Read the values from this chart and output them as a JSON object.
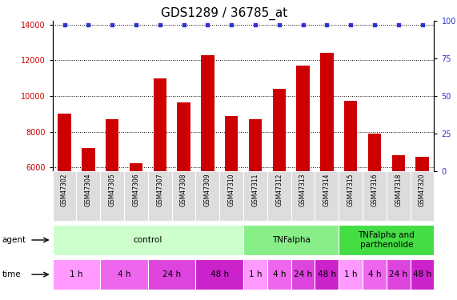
{
  "title": "GDS1289 / 36785_at",
  "samples": [
    "GSM47302",
    "GSM47304",
    "GSM47305",
    "GSM47306",
    "GSM47307",
    "GSM47308",
    "GSM47309",
    "GSM47310",
    "GSM47311",
    "GSM47312",
    "GSM47313",
    "GSM47314",
    "GSM47315",
    "GSM47316",
    "GSM47318",
    "GSM47320"
  ],
  "counts": [
    9000,
    7100,
    8700,
    6250,
    11000,
    9650,
    12300,
    8900,
    8700,
    10400,
    11700,
    12400,
    9750,
    7900,
    6700,
    6600
  ],
  "bar_color": "#cc0000",
  "dot_color": "#3333cc",
  "ylim_left": [
    5800,
    14200
  ],
  "yticks_left": [
    6000,
    8000,
    10000,
    12000,
    14000
  ],
  "yticks_right": [
    0,
    25,
    50,
    75,
    100
  ],
  "right_axis_color": "#3333cc",
  "left_axis_color": "#cc0000",
  "agent_groups": [
    {
      "label": "control",
      "start": 0,
      "end": 8,
      "color": "#ccffcc"
    },
    {
      "label": "TNFalpha",
      "start": 8,
      "end": 12,
      "color": "#88ee88"
    },
    {
      "label": "TNFalpha and\nparthenolide",
      "start": 12,
      "end": 16,
      "color": "#44dd44"
    }
  ],
  "time_group_defs": [
    {
      "label": "1 h",
      "start": 0,
      "end": 2,
      "color": "#ff99ff"
    },
    {
      "label": "4 h",
      "start": 2,
      "end": 4,
      "color": "#ee66ee"
    },
    {
      "label": "24 h",
      "start": 4,
      "end": 6,
      "color": "#dd44dd"
    },
    {
      "label": "48 h",
      "start": 6,
      "end": 8,
      "color": "#cc22cc"
    },
    {
      "label": "1 h",
      "start": 8,
      "end": 9,
      "color": "#ff99ff"
    },
    {
      "label": "4 h",
      "start": 9,
      "end": 10,
      "color": "#ee66ee"
    },
    {
      "label": "24 h",
      "start": 10,
      "end": 11,
      "color": "#dd44dd"
    },
    {
      "label": "48 h",
      "start": 11,
      "end": 12,
      "color": "#cc22cc"
    },
    {
      "label": "1 h",
      "start": 12,
      "end": 13,
      "color": "#ff99ff"
    },
    {
      "label": "4 h",
      "start": 13,
      "end": 14,
      "color": "#ee66ee"
    },
    {
      "label": "24 h",
      "start": 14,
      "end": 15,
      "color": "#dd44dd"
    },
    {
      "label": "48 h",
      "start": 15,
      "end": 16,
      "color": "#cc22cc"
    }
  ],
  "legend_count_color": "#cc0000",
  "legend_pct_color": "#3333cc",
  "bg_color": "#ffffff",
  "tick_label_bg": "#dddddd",
  "title_fontsize": 11,
  "tick_fontsize": 7,
  "annot_fontsize": 7.5
}
